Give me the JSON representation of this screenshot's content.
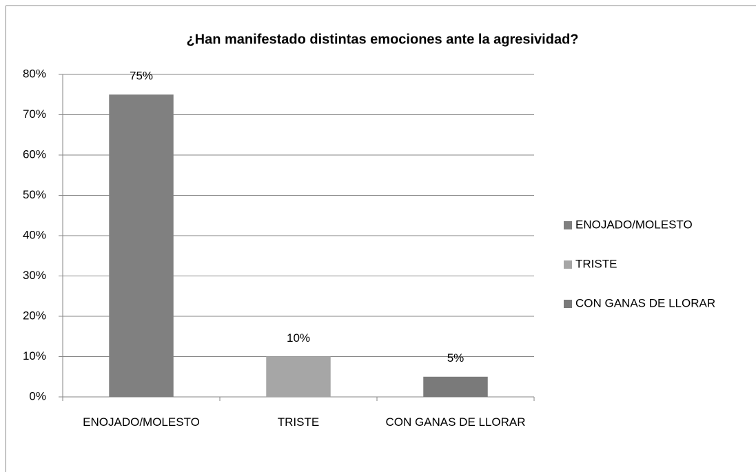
{
  "chart_data": {
    "type": "bar",
    "title": "¿Han manifestado distintas emociones ante la agresividad?",
    "categories": [
      "ENOJADO/MOLESTO",
      "TRISTE",
      "CON GANAS DE LLORAR"
    ],
    "values": [
      75,
      10,
      5
    ],
    "value_labels": [
      "75%",
      "10%",
      "5%"
    ],
    "colors": [
      "#808080",
      "#a6a6a6",
      "#7a7a7a"
    ],
    "ylim": [
      0,
      80
    ],
    "yticks": [
      {
        "value": 0,
        "label": "0%"
      },
      {
        "value": 10,
        "label": "10%"
      },
      {
        "value": 20,
        "label": "20%"
      },
      {
        "value": 30,
        "label": "30%"
      },
      {
        "value": 40,
        "label": "40%"
      },
      {
        "value": 50,
        "label": "50%"
      },
      {
        "value": 60,
        "label": "60%"
      },
      {
        "value": 70,
        "label": "70%"
      },
      {
        "value": 80,
        "label": "80%"
      }
    ],
    "grid": true,
    "legend": "right"
  }
}
